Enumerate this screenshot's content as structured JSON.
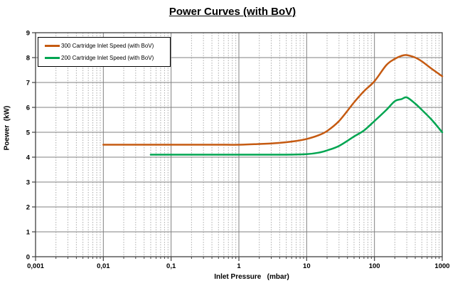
{
  "title": "Power Curves (with BoV)",
  "chart_data": {
    "type": "line",
    "title": "Power Curves (with BoV)",
    "xlabel": "Inlet Pressure   (mbar)",
    "ylabel": "Poewer  (kW)",
    "x_scale": "log",
    "xlim": [
      0.001,
      1000
    ],
    "ylim": [
      0,
      9
    ],
    "x_tick_labels": [
      "0,001",
      "0,01",
      "0,1",
      "1",
      "10",
      "100",
      "1000"
    ],
    "x_tick_values": [
      0.001,
      0.01,
      0.1,
      1,
      10,
      100,
      1000
    ],
    "y_tick_labels": [
      "0",
      "1",
      "2",
      "3",
      "4",
      "5",
      "6",
      "7",
      "8",
      "9"
    ],
    "y_tick_values": [
      0,
      1,
      2,
      3,
      4,
      5,
      6,
      7,
      8,
      9
    ],
    "grid": "major-solid, log-minor-dotted",
    "legend_position": "top-left",
    "series": [
      {
        "name": "300 Cartridge Inlet Speed (with BoV)",
        "color": "#C55A11",
        "points": [
          [
            0.01,
            4.5
          ],
          [
            0.02,
            4.5
          ],
          [
            0.05,
            4.5
          ],
          [
            0.1,
            4.5
          ],
          [
            0.2,
            4.5
          ],
          [
            0.5,
            4.5
          ],
          [
            1,
            4.5
          ],
          [
            2,
            4.53
          ],
          [
            3,
            4.55
          ],
          [
            5,
            4.6
          ],
          [
            7,
            4.65
          ],
          [
            10,
            4.73
          ],
          [
            15,
            4.88
          ],
          [
            20,
            5.05
          ],
          [
            30,
            5.45
          ],
          [
            50,
            6.2
          ],
          [
            70,
            6.65
          ],
          [
            100,
            7.05
          ],
          [
            150,
            7.7
          ],
          [
            200,
            7.95
          ],
          [
            250,
            8.07
          ],
          [
            300,
            8.1
          ],
          [
            400,
            8.0
          ],
          [
            500,
            7.85
          ],
          [
            700,
            7.55
          ],
          [
            1000,
            7.25
          ]
        ]
      },
      {
        "name": "200 Cartridge Inlet Speed (with BoV)",
        "color": "#00A551",
        "points": [
          [
            0.05,
            4.1
          ],
          [
            0.1,
            4.1
          ],
          [
            0.2,
            4.1
          ],
          [
            0.5,
            4.1
          ],
          [
            1,
            4.1
          ],
          [
            2,
            4.1
          ],
          [
            5,
            4.1
          ],
          [
            10,
            4.12
          ],
          [
            15,
            4.18
          ],
          [
            20,
            4.27
          ],
          [
            30,
            4.45
          ],
          [
            50,
            4.83
          ],
          [
            70,
            5.07
          ],
          [
            100,
            5.45
          ],
          [
            150,
            5.9
          ],
          [
            200,
            6.25
          ],
          [
            250,
            6.33
          ],
          [
            300,
            6.4
          ],
          [
            400,
            6.15
          ],
          [
            500,
            5.9
          ],
          [
            700,
            5.5
          ],
          [
            1000,
            5.0
          ]
        ]
      }
    ],
    "style_colors": {
      "grid_major": "#808080",
      "grid_minor": "#ABABAB",
      "axis_border": "#404040",
      "tick_text": "#000000"
    }
  }
}
